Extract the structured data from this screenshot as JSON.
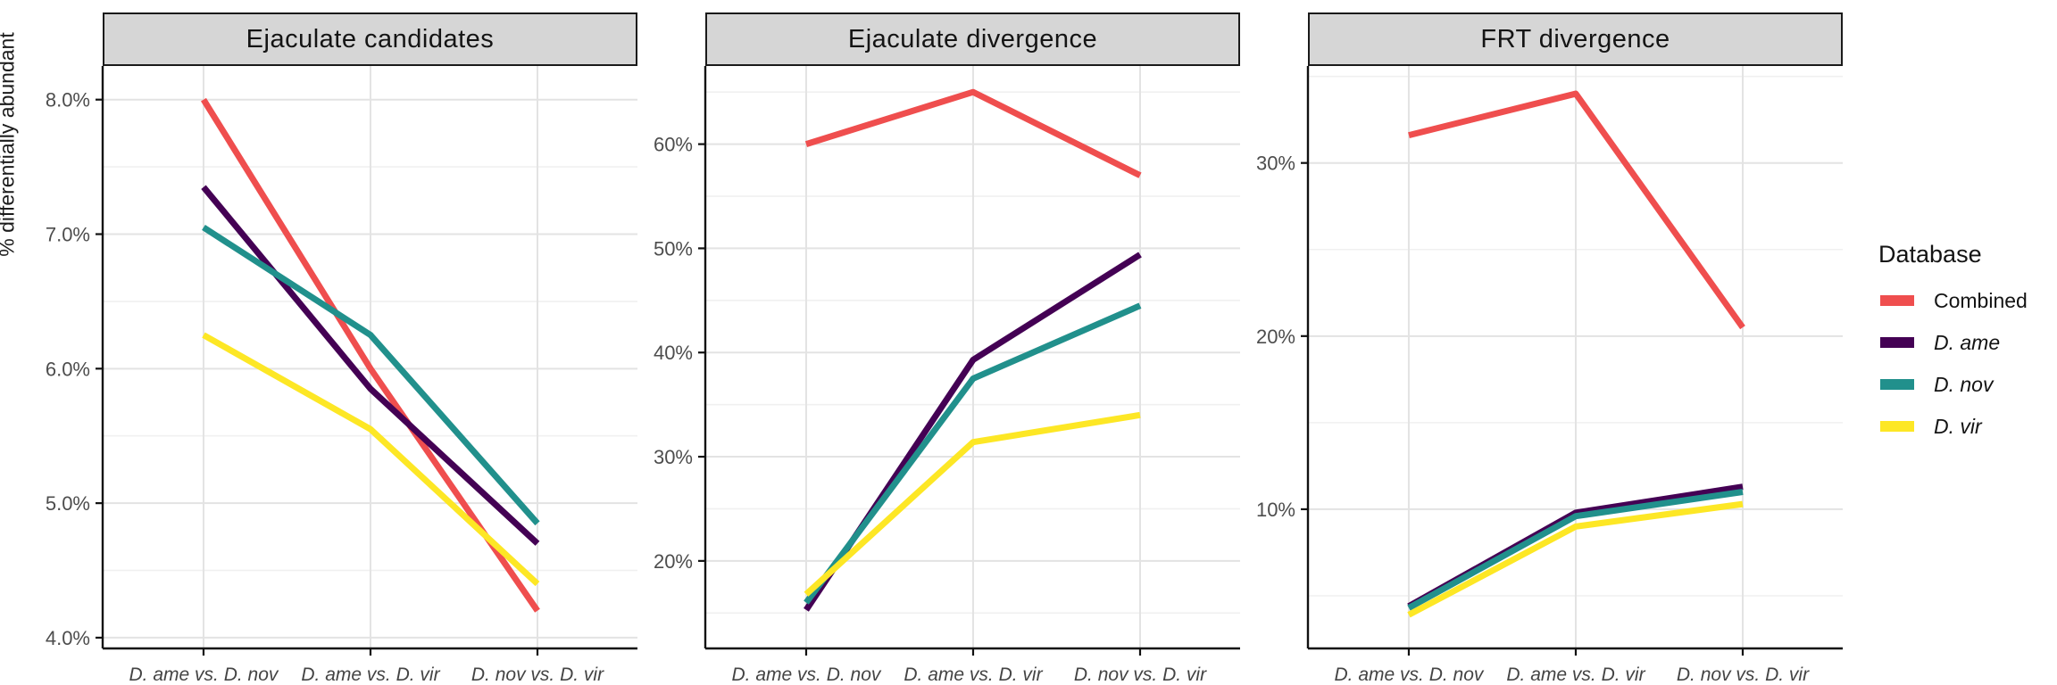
{
  "figure": {
    "y_axis_title": "% differentially abundant"
  },
  "legend": {
    "title": "Database",
    "entries": [
      {
        "label": "Combined",
        "color": "#EF4E4E",
        "italic": false
      },
      {
        "label": "D. ame",
        "color": "#440154",
        "italic": true
      },
      {
        "label": "D. nov",
        "color": "#21908C",
        "italic": true
      },
      {
        "label": "D. vir",
        "color": "#FDE725",
        "italic": true
      }
    ]
  },
  "chart_data": {
    "type": "line",
    "legend_position": "right",
    "grid": true,
    "categories": [
      "D. ame vs. D. nov",
      "D. ame vs. D. vir",
      "D. nov vs. D. vir"
    ],
    "panels": [
      {
        "title": "Ejaculate candidates",
        "ylim": [
          3.92,
          8.25
        ],
        "y_ticks": [
          {
            "v": 8,
            "label": "8.0%"
          },
          {
            "v": 7,
            "label": "7.0%"
          },
          {
            "v": 6,
            "label": "6.0%"
          },
          {
            "v": 5,
            "label": "5.0%"
          },
          {
            "v": 4,
            "label": "4.0%"
          }
        ],
        "series": [
          {
            "name": "Combined",
            "color": "#EF4E4E",
            "values": [
              8.0,
              6.0,
              4.2
            ]
          },
          {
            "name": "D. ame",
            "color": "#440154",
            "values": [
              7.35,
              5.85,
              4.7
            ]
          },
          {
            "name": "D. nov",
            "color": "#21908C",
            "values": [
              7.05,
              6.25,
              4.85
            ]
          },
          {
            "name": "D. vir",
            "color": "#FDE725",
            "values": [
              6.25,
              5.55,
              4.4
            ]
          }
        ]
      },
      {
        "title": "Ejaculate divergence",
        "ylim": [
          11.6,
          67.5
        ],
        "y_ticks": [
          {
            "v": 60,
            "label": "60%"
          },
          {
            "v": 50,
            "label": "50%"
          },
          {
            "v": 40,
            "label": "40%"
          },
          {
            "v": 30,
            "label": "30%"
          },
          {
            "v": 20,
            "label": "20%"
          }
        ],
        "series": [
          {
            "name": "Combined",
            "color": "#EF4E4E",
            "values": [
              60,
              65,
              57
            ]
          },
          {
            "name": "D. ame",
            "color": "#440154",
            "values": [
              15.3,
              39.3,
              49.4
            ]
          },
          {
            "name": "D. nov",
            "color": "#21908C",
            "values": [
              16.0,
              37.5,
              44.5
            ]
          },
          {
            "name": "D. vir",
            "color": "#FDE725",
            "values": [
              16.8,
              31.4,
              34.0
            ]
          }
        ]
      },
      {
        "title": "FRT divergence",
        "ylim": [
          1.96,
          35.6
        ],
        "y_ticks": [
          {
            "v": 30,
            "label": "30%"
          },
          {
            "v": 20,
            "label": "20%"
          },
          {
            "v": 10,
            "label": "10%"
          }
        ],
        "series": [
          {
            "name": "Combined",
            "color": "#EF4E4E",
            "values": [
              31.6,
              34.0,
              20.5
            ]
          },
          {
            "name": "D. ame",
            "color": "#440154",
            "values": [
              4.4,
              9.8,
              11.3
            ]
          },
          {
            "name": "D. nov",
            "color": "#21908C",
            "values": [
              4.3,
              9.6,
              11.0
            ]
          },
          {
            "name": "D. vir",
            "color": "#FDE725",
            "values": [
              3.9,
              9.0,
              10.3
            ]
          }
        ]
      }
    ]
  }
}
